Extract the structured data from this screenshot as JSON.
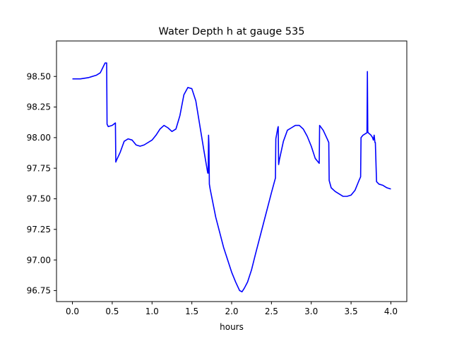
{
  "chart_data": {
    "type": "line",
    "title": "Water Depth h at gauge 535",
    "xlabel": "hours",
    "ylabel": "",
    "xlim": [
      -0.2,
      4.2
    ],
    "ylim": [
      96.66,
      98.79
    ],
    "xticks": [
      0.0,
      0.5,
      1.0,
      1.5,
      2.0,
      2.5,
      3.0,
      3.5,
      4.0
    ],
    "xtick_labels": [
      "0.0",
      "0.5",
      "1.0",
      "1.5",
      "2.0",
      "2.5",
      "3.0",
      "3.5",
      "4.0"
    ],
    "yticks": [
      96.75,
      97.0,
      97.25,
      97.5,
      97.75,
      98.0,
      98.25,
      98.5
    ],
    "ytick_labels": [
      "96.75",
      "97.00",
      "97.25",
      "97.50",
      "97.75",
      "98.00",
      "98.25",
      "98.50"
    ],
    "grid": false,
    "series": [
      {
        "color": "#0000ff",
        "x": [
          0.0,
          0.1,
          0.2,
          0.3,
          0.35,
          0.38,
          0.41,
          0.43,
          0.435,
          0.45,
          0.5,
          0.54,
          0.545,
          0.55,
          0.6,
          0.65,
          0.7,
          0.75,
          0.8,
          0.85,
          0.9,
          1.0,
          1.05,
          1.1,
          1.15,
          1.2,
          1.25,
          1.3,
          1.35,
          1.4,
          1.45,
          1.5,
          1.55,
          1.6,
          1.65,
          1.7,
          1.705,
          1.71,
          1.715,
          1.72,
          1.73,
          1.8,
          1.9,
          2.0,
          2.05,
          2.1,
          2.13,
          2.16,
          2.2,
          2.25,
          2.3,
          2.4,
          2.5,
          2.55,
          2.555,
          2.58,
          2.585,
          2.59,
          2.6,
          2.65,
          2.7,
          2.75,
          2.8,
          2.85,
          2.9,
          2.95,
          3.0,
          3.05,
          3.1,
          3.105,
          3.15,
          3.2,
          3.22,
          3.225,
          3.25,
          3.3,
          3.35,
          3.4,
          3.45,
          3.5,
          3.55,
          3.6,
          3.62,
          3.625,
          3.65,
          3.7,
          3.705,
          3.71,
          3.715,
          3.75,
          3.77,
          3.78,
          3.79,
          3.8,
          3.805,
          3.82,
          3.85,
          3.9,
          3.95,
          4.0
        ],
        "y": [
          98.48,
          98.48,
          98.49,
          98.51,
          98.53,
          98.57,
          98.61,
          98.61,
          98.11,
          98.09,
          98.1,
          98.12,
          97.8,
          97.81,
          97.88,
          97.97,
          97.99,
          97.98,
          97.94,
          97.93,
          97.94,
          97.98,
          98.02,
          98.07,
          98.1,
          98.08,
          98.05,
          98.07,
          98.18,
          98.35,
          98.41,
          98.4,
          98.3,
          98.1,
          97.9,
          97.71,
          97.71,
          98.02,
          97.94,
          97.62,
          97.58,
          97.35,
          97.1,
          96.9,
          96.82,
          96.75,
          96.74,
          96.77,
          96.82,
          96.92,
          97.05,
          97.3,
          97.55,
          97.67,
          97.99,
          98.08,
          98.09,
          97.78,
          97.82,
          97.97,
          98.06,
          98.08,
          98.1,
          98.1,
          98.07,
          98.01,
          97.93,
          97.83,
          97.79,
          98.1,
          98.06,
          97.99,
          97.96,
          97.65,
          97.59,
          97.56,
          97.54,
          97.52,
          97.52,
          97.53,
          97.57,
          97.65,
          97.68,
          98.0,
          98.02,
          98.04,
          98.54,
          98.05,
          98.04,
          98.02,
          98.0,
          97.98,
          98.02,
          97.96,
          97.96,
          97.64,
          97.62,
          97.61,
          97.59,
          97.58
        ]
      }
    ]
  }
}
